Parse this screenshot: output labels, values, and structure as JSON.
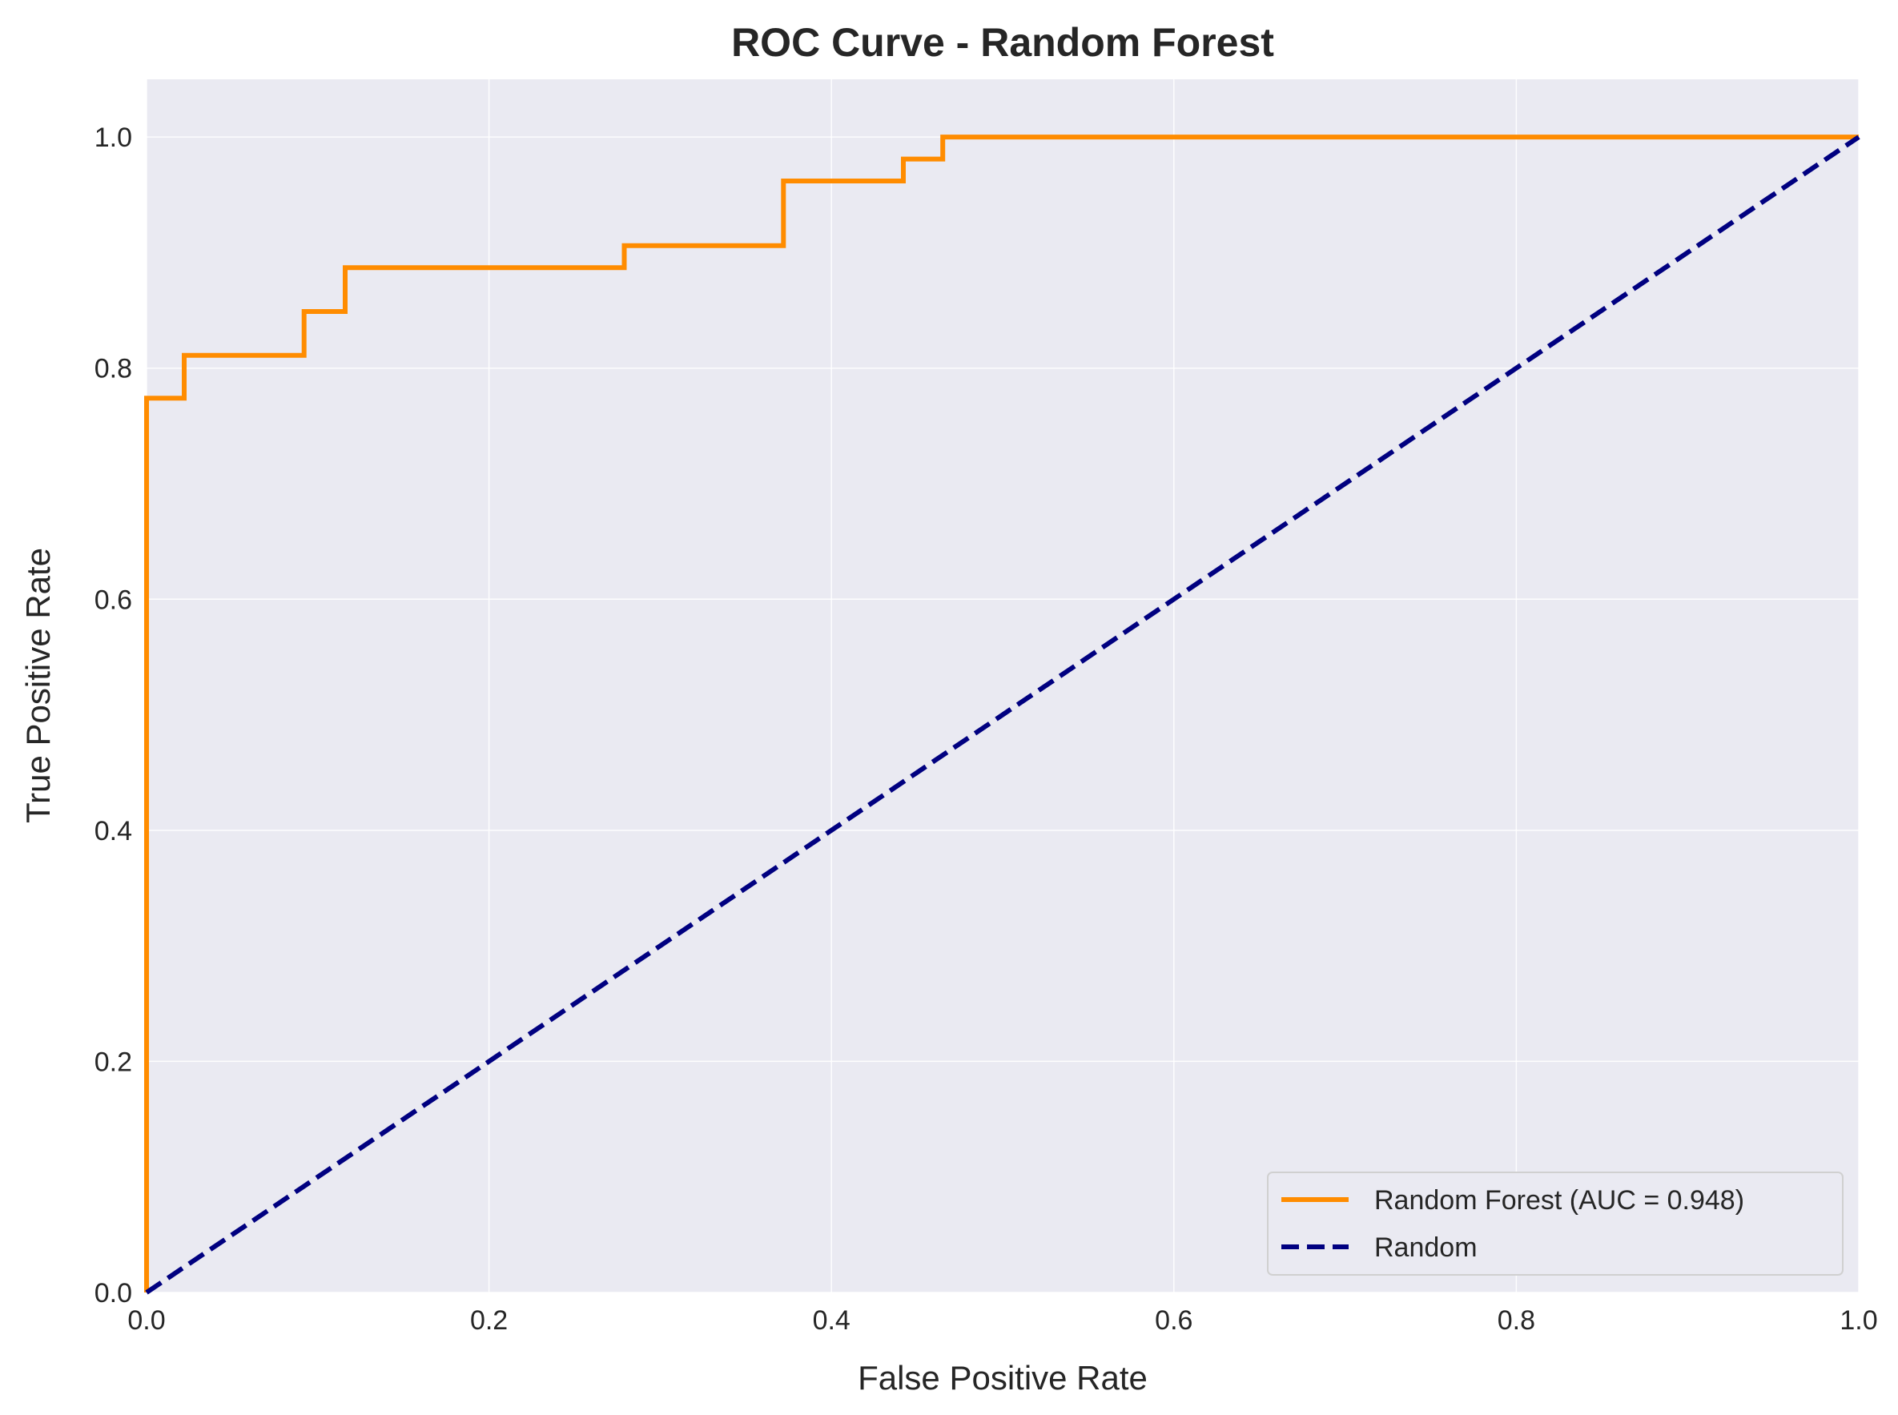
{
  "chart_data": {
    "type": "line",
    "title": "ROC Curve - Random Forest",
    "xlabel": "False Positive Rate",
    "ylabel": "True Positive Rate",
    "xlim": [
      0.0,
      1.0
    ],
    "ylim": [
      0.0,
      1.05
    ],
    "xticks": [
      "0.0",
      "0.2",
      "0.4",
      "0.6",
      "0.8",
      "1.0"
    ],
    "yticks": [
      "0.0",
      "0.2",
      "0.4",
      "0.6",
      "0.8",
      "1.0"
    ],
    "grid": true,
    "legend_position": "lower-right",
    "series": [
      {
        "name": "Random Forest (AUC = 0.948)",
        "color": "#ff8c00",
        "style": "solid",
        "x": [
          0.0,
          0.0,
          0.022,
          0.022,
          0.092,
          0.092,
          0.116,
          0.116,
          0.279,
          0.279,
          0.372,
          0.372,
          0.442,
          0.442,
          0.465,
          0.465,
          1.0
        ],
        "y": [
          0.0,
          0.774,
          0.774,
          0.811,
          0.811,
          0.849,
          0.849,
          0.887,
          0.887,
          0.906,
          0.906,
          0.962,
          0.962,
          0.981,
          0.981,
          1.0,
          1.0
        ]
      },
      {
        "name": "Random",
        "color": "#000080",
        "style": "dashed",
        "x": [
          0.0,
          1.0
        ],
        "y": [
          0.0,
          1.0
        ]
      }
    ]
  }
}
